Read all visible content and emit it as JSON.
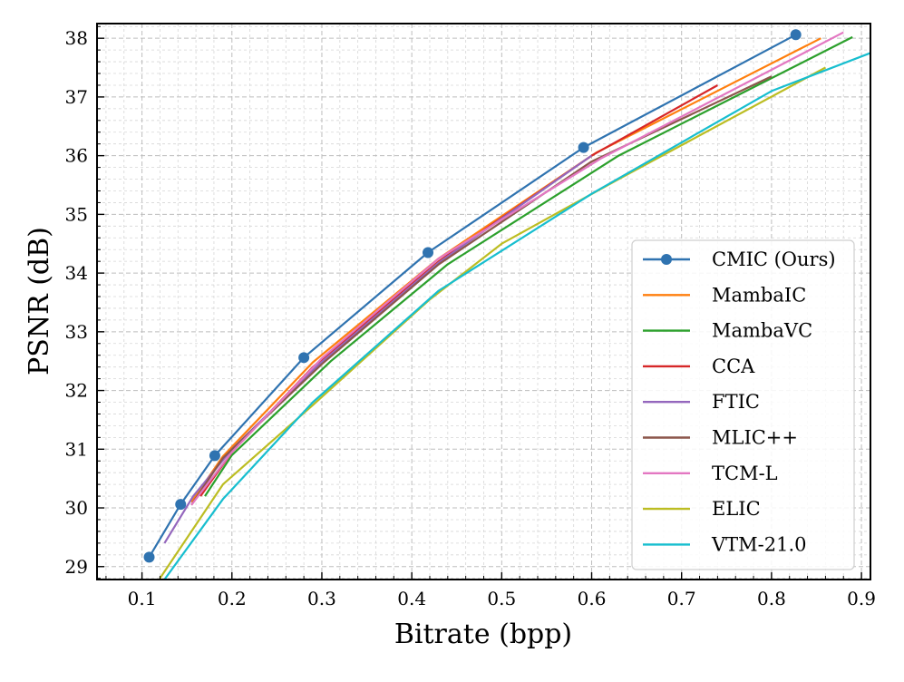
{
  "chart_data": {
    "type": "line",
    "title": "",
    "xlabel": "Bitrate (bpp)",
    "ylabel": "PSNR (dB)",
    "xlim": [
      0.05,
      0.91
    ],
    "ylim": [
      28.78,
      38.25
    ],
    "grid": true,
    "legend_position": "lower-right",
    "x_ticks": [
      0.1,
      0.2,
      0.3,
      0.4,
      0.5,
      0.6,
      0.7,
      0.8,
      0.9
    ],
    "x_tick_labels": [
      "0.1",
      "0.2",
      "0.3",
      "0.4",
      "0.5",
      "0.6",
      "0.7",
      "0.8",
      "0.9"
    ],
    "y_ticks": [
      29,
      30,
      31,
      32,
      33,
      34,
      35,
      36,
      37,
      38
    ],
    "y_tick_labels": [
      "29",
      "30",
      "31",
      "32",
      "33",
      "34",
      "35",
      "36",
      "37",
      "38"
    ],
    "series": [
      {
        "name": "CMIC (Ours)",
        "color": "#2f73b0",
        "marker": "circle",
        "x": [
          0.108,
          0.143,
          0.181,
          0.28,
          0.418,
          0.591,
          0.827
        ],
        "y": [
          29.16,
          30.06,
          30.89,
          32.56,
          34.35,
          36.14,
          38.06
        ]
      },
      {
        "name": "MambaIC",
        "color": "#ff7f0e",
        "marker": "none",
        "x": [
          0.155,
          0.19,
          0.29,
          0.43,
          0.605,
          0.855
        ],
        "y": [
          30.1,
          30.88,
          32.48,
          34.25,
          36.05,
          38.0
        ]
      },
      {
        "name": "MambaVC",
        "color": "#2ca02c",
        "marker": "none",
        "x": [
          0.17,
          0.2,
          0.31,
          0.44,
          0.63,
          0.89
        ],
        "y": [
          30.2,
          30.9,
          32.5,
          34.15,
          36.0,
          38.02
        ]
      },
      {
        "name": "CCA",
        "color": "#d62728",
        "marker": "none",
        "x": [
          0.165,
          0.2,
          0.29,
          0.43,
          0.6,
          0.74
        ],
        "y": [
          30.2,
          30.95,
          32.4,
          34.2,
          36.0,
          37.2
        ]
      },
      {
        "name": "FTIC",
        "color": "#9467bd",
        "marker": "none",
        "x": [
          0.125,
          0.157,
          0.2,
          0.295,
          0.43,
          0.6
        ],
        "y": [
          29.4,
          30.2,
          31.0,
          32.42,
          34.18,
          36.0
        ]
      },
      {
        "name": "MLIC++",
        "color": "#8c564b",
        "marker": "none",
        "x": [
          0.155,
          0.19,
          0.3,
          0.43,
          0.6,
          0.8
        ],
        "y": [
          30.05,
          30.85,
          32.45,
          34.15,
          35.9,
          37.35
        ]
      },
      {
        "name": "TCM-L",
        "color": "#e377c2",
        "marker": "none",
        "x": [
          0.155,
          0.2,
          0.3,
          0.43,
          0.61,
          0.88
        ],
        "y": [
          30.05,
          30.95,
          32.55,
          34.25,
          35.95,
          38.1
        ]
      },
      {
        "name": "ELIC",
        "color": "#bcbd22",
        "marker": "none",
        "x": [
          0.12,
          0.19,
          0.29,
          0.42,
          0.5,
          0.63,
          0.86
        ],
        "y": [
          28.8,
          30.4,
          31.75,
          33.55,
          34.5,
          35.6,
          37.5
        ]
      },
      {
        "name": "VTM-21.0",
        "color": "#17becf",
        "marker": "none",
        "x": [
          0.125,
          0.19,
          0.29,
          0.43,
          0.6,
          0.8,
          0.91
        ],
        "y": [
          28.78,
          30.15,
          31.8,
          33.7,
          35.35,
          37.1,
          37.75
        ]
      }
    ]
  }
}
